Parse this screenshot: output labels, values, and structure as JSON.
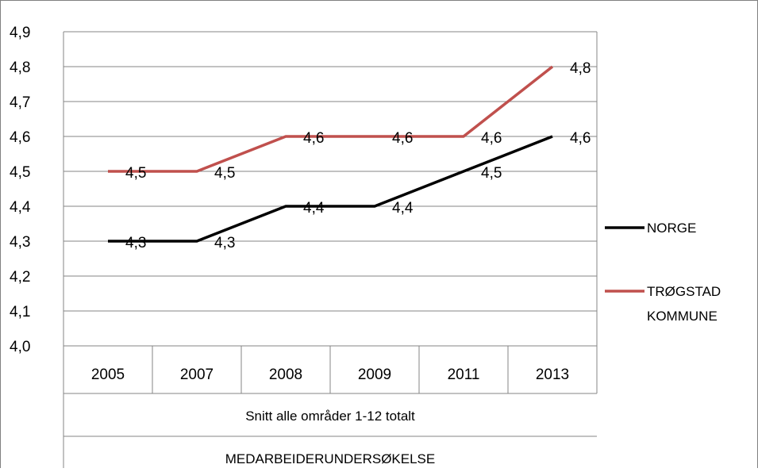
{
  "chart_data": {
    "type": "line",
    "categories": [
      "2005",
      "2007",
      "2008",
      "2009",
      "2011",
      "2013"
    ],
    "series": [
      {
        "name": "NORGE",
        "values": [
          4.3,
          4.3,
          4.4,
          4.4,
          4.5,
          4.6
        ],
        "color": "#000000",
        "labels": [
          "4,3",
          "4,3",
          "4,4",
          "4,4",
          "4,5",
          "4,6"
        ]
      },
      {
        "name": "TRØGSTAD KOMMUNE",
        "values": [
          4.5,
          4.5,
          4.6,
          4.6,
          4.6,
          4.8
        ],
        "color": "#c0504d",
        "labels": [
          "4,5",
          "4,5",
          "4,6",
          "4,6",
          "4,6",
          "4,8"
        ]
      }
    ],
    "ylim": [
      4.0,
      4.9
    ],
    "yticks": [
      4.0,
      4.1,
      4.2,
      4.3,
      4.4,
      4.5,
      4.6,
      4.7,
      4.8,
      4.9
    ],
    "ytick_labels": [
      "4,0",
      "4,1",
      "4,2",
      "4,3",
      "4,4",
      "4,5",
      "4,6",
      "4,7",
      "4,8",
      "4,9"
    ],
    "xlabel_lines": [
      "Snitt alle områder 1-12  totalt",
      "MEDARBEIDERUNDERSØKELSE"
    ],
    "grid": true,
    "legend_position": "right"
  }
}
